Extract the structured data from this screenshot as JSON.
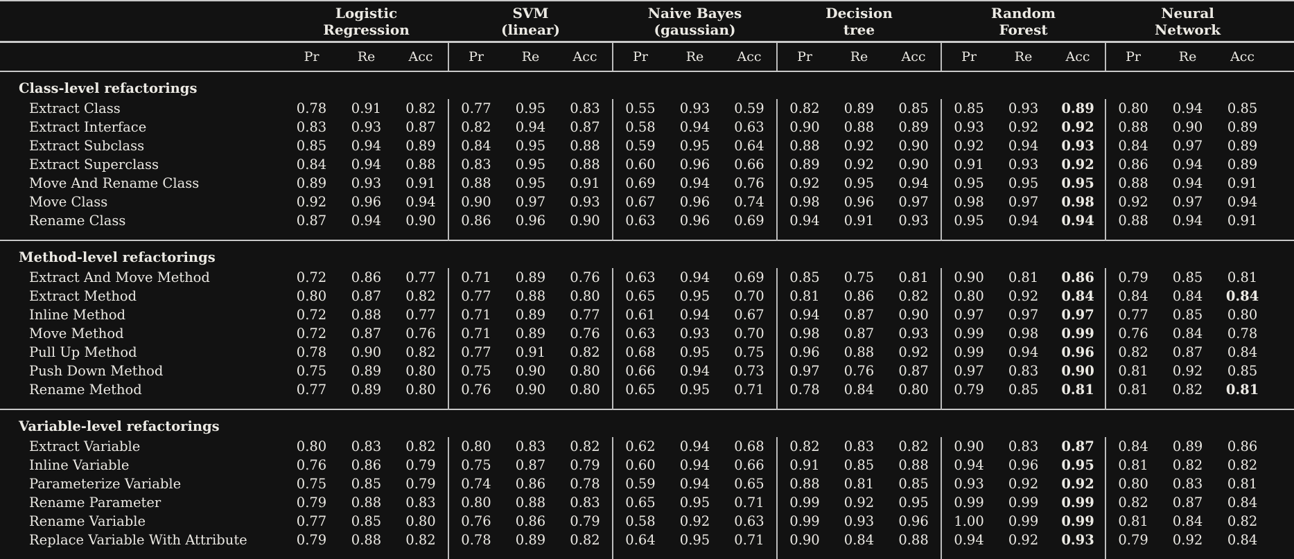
{
  "colors": {
    "background": "#121212",
    "text": "#eceae4",
    "rule": "#c9c9c9",
    "bar": "#bdbdbd"
  },
  "table": {
    "classifiers": [
      {
        "line1": "Logistic",
        "line2": "Regression"
      },
      {
        "line1": "SVM",
        "line2": "(linear)"
      },
      {
        "line1": "Naive Bayes",
        "line2": "(gaussian)"
      },
      {
        "line1": "Decision",
        "line2": "tree"
      },
      {
        "line1": "Random",
        "line2": "Forest"
      },
      {
        "line1": "Neural",
        "line2": "Network"
      }
    ],
    "metric_headers": [
      "Pr",
      "Re",
      "Acc"
    ],
    "sections": [
      {
        "title": "Class-level refactorings",
        "rows": [
          {
            "label": "Extract Class",
            "values": [
              "0.78",
              "0.91",
              "0.82",
              "0.77",
              "0.95",
              "0.83",
              "0.55",
              "0.93",
              "0.59",
              "0.82",
              "0.89",
              "0.85",
              "0.85",
              "0.93",
              "0.89",
              "0.80",
              "0.94",
              "0.85"
            ],
            "bold": [
              14
            ]
          },
          {
            "label": "Extract Interface",
            "values": [
              "0.83",
              "0.93",
              "0.87",
              "0.82",
              "0.94",
              "0.87",
              "0.58",
              "0.94",
              "0.63",
              "0.90",
              "0.88",
              "0.89",
              "0.93",
              "0.92",
              "0.92",
              "0.88",
              "0.90",
              "0.89"
            ],
            "bold": [
              14
            ]
          },
          {
            "label": "Extract Subclass",
            "values": [
              "0.85",
              "0.94",
              "0.89",
              "0.84",
              "0.95",
              "0.88",
              "0.59",
              "0.95",
              "0.64",
              "0.88",
              "0.92",
              "0.90",
              "0.92",
              "0.94",
              "0.93",
              "0.84",
              "0.97",
              "0.89"
            ],
            "bold": [
              14
            ]
          },
          {
            "label": "Extract Superclass",
            "values": [
              "0.84",
              "0.94",
              "0.88",
              "0.83",
              "0.95",
              "0.88",
              "0.60",
              "0.96",
              "0.66",
              "0.89",
              "0.92",
              "0.90",
              "0.91",
              "0.93",
              "0.92",
              "0.86",
              "0.94",
              "0.89"
            ],
            "bold": [
              14
            ]
          },
          {
            "label": "Move And Rename Class",
            "values": [
              "0.89",
              "0.93",
              "0.91",
              "0.88",
              "0.95",
              "0.91",
              "0.69",
              "0.94",
              "0.76",
              "0.92",
              "0.95",
              "0.94",
              "0.95",
              "0.95",
              "0.95",
              "0.88",
              "0.94",
              "0.91"
            ],
            "bold": [
              14
            ]
          },
          {
            "label": "Move Class",
            "values": [
              "0.92",
              "0.96",
              "0.94",
              "0.90",
              "0.97",
              "0.93",
              "0.67",
              "0.96",
              "0.74",
              "0.98",
              "0.96",
              "0.97",
              "0.98",
              "0.97",
              "0.98",
              "0.92",
              "0.97",
              "0.94"
            ],
            "bold": [
              14
            ]
          },
          {
            "label": "Rename Class",
            "values": [
              "0.87",
              "0.94",
              "0.90",
              "0.86",
              "0.96",
              "0.90",
              "0.63",
              "0.96",
              "0.69",
              "0.94",
              "0.91",
              "0.93",
              "0.95",
              "0.94",
              "0.94",
              "0.88",
              "0.94",
              "0.91"
            ],
            "bold": [
              14
            ]
          }
        ]
      },
      {
        "title": "Method-level refactorings",
        "rows": [
          {
            "label": "Extract And Move Method",
            "values": [
              "0.72",
              "0.86",
              "0.77",
              "0.71",
              "0.89",
              "0.76",
              "0.63",
              "0.94",
              "0.69",
              "0.85",
              "0.75",
              "0.81",
              "0.90",
              "0.81",
              "0.86",
              "0.79",
              "0.85",
              "0.81"
            ],
            "bold": [
              14
            ]
          },
          {
            "label": "Extract Method",
            "values": [
              "0.80",
              "0.87",
              "0.82",
              "0.77",
              "0.88",
              "0.80",
              "0.65",
              "0.95",
              "0.70",
              "0.81",
              "0.86",
              "0.82",
              "0.80",
              "0.92",
              "0.84",
              "0.84",
              "0.84",
              "0.84"
            ],
            "bold": [
              14,
              17
            ]
          },
          {
            "label": "Inline Method",
            "values": [
              "0.72",
              "0.88",
              "0.77",
              "0.71",
              "0.89",
              "0.77",
              "0.61",
              "0.94",
              "0.67",
              "0.94",
              "0.87",
              "0.90",
              "0.97",
              "0.97",
              "0.97",
              "0.77",
              "0.85",
              "0.80"
            ],
            "bold": [
              14
            ]
          },
          {
            "label": "Move Method",
            "values": [
              "0.72",
              "0.87",
              "0.76",
              "0.71",
              "0.89",
              "0.76",
              "0.63",
              "0.93",
              "0.70",
              "0.98",
              "0.87",
              "0.93",
              "0.99",
              "0.98",
              "0.99",
              "0.76",
              "0.84",
              "0.78"
            ],
            "bold": [
              14
            ]
          },
          {
            "label": "Pull Up Method",
            "values": [
              "0.78",
              "0.90",
              "0.82",
              "0.77",
              "0.91",
              "0.82",
              "0.68",
              "0.95",
              "0.75",
              "0.96",
              "0.88",
              "0.92",
              "0.99",
              "0.94",
              "0.96",
              "0.82",
              "0.87",
              "0.84"
            ],
            "bold": [
              14
            ]
          },
          {
            "label": "Push Down Method",
            "values": [
              "0.75",
              "0.89",
              "0.80",
              "0.75",
              "0.90",
              "0.80",
              "0.66",
              "0.94",
              "0.73",
              "0.97",
              "0.76",
              "0.87",
              "0.97",
              "0.83",
              "0.90",
              "0.81",
              "0.92",
              "0.85"
            ],
            "bold": [
              14
            ]
          },
          {
            "label": "Rename Method",
            "values": [
              "0.77",
              "0.89",
              "0.80",
              "0.76",
              "0.90",
              "0.80",
              "0.65",
              "0.95",
              "0.71",
              "0.78",
              "0.84",
              "0.80",
              "0.79",
              "0.85",
              "0.81",
              "0.81",
              "0.82",
              "0.81"
            ],
            "bold": [
              14,
              17
            ]
          }
        ]
      },
      {
        "title": "Variable-level refactorings",
        "rows": [
          {
            "label": "Extract Variable",
            "values": [
              "0.80",
              "0.83",
              "0.82",
              "0.80",
              "0.83",
              "0.82",
              "0.62",
              "0.94",
              "0.68",
              "0.82",
              "0.83",
              "0.82",
              "0.90",
              "0.83",
              "0.87",
              "0.84",
              "0.89",
              "0.86"
            ],
            "bold": [
              14
            ]
          },
          {
            "label": "Inline Variable",
            "values": [
              "0.76",
              "0.86",
              "0.79",
              "0.75",
              "0.87",
              "0.79",
              "0.60",
              "0.94",
              "0.66",
              "0.91",
              "0.85",
              "0.88",
              "0.94",
              "0.96",
              "0.95",
              "0.81",
              "0.82",
              "0.82"
            ],
            "bold": [
              14
            ]
          },
          {
            "label": "Parameterize Variable",
            "values": [
              "0.75",
              "0.85",
              "0.79",
              "0.74",
              "0.86",
              "0.78",
              "0.59",
              "0.94",
              "0.65",
              "0.88",
              "0.81",
              "0.85",
              "0.93",
              "0.92",
              "0.92",
              "0.80",
              "0.83",
              "0.81"
            ],
            "bold": [
              14
            ]
          },
          {
            "label": "Rename Parameter",
            "values": [
              "0.79",
              "0.88",
              "0.83",
              "0.80",
              "0.88",
              "0.83",
              "0.65",
              "0.95",
              "0.71",
              "0.99",
              "0.92",
              "0.95",
              "0.99",
              "0.99",
              "0.99",
              "0.82",
              "0.87",
              "0.84"
            ],
            "bold": [
              14
            ]
          },
          {
            "label": "Rename Variable",
            "values": [
              "0.77",
              "0.85",
              "0.80",
              "0.76",
              "0.86",
              "0.79",
              "0.58",
              "0.92",
              "0.63",
              "0.99",
              "0.93",
              "0.96",
              "1.00",
              "0.99",
              "0.99",
              "0.81",
              "0.84",
              "0.82"
            ],
            "bold": [
              14
            ]
          },
          {
            "label": "Replace Variable With Attribute",
            "values": [
              "0.79",
              "0.88",
              "0.82",
              "0.78",
              "0.89",
              "0.82",
              "0.64",
              "0.95",
              "0.71",
              "0.90",
              "0.84",
              "0.88",
              "0.94",
              "0.92",
              "0.93",
              "0.79",
              "0.92",
              "0.84"
            ],
            "bold": [
              14
            ]
          }
        ]
      }
    ]
  }
}
